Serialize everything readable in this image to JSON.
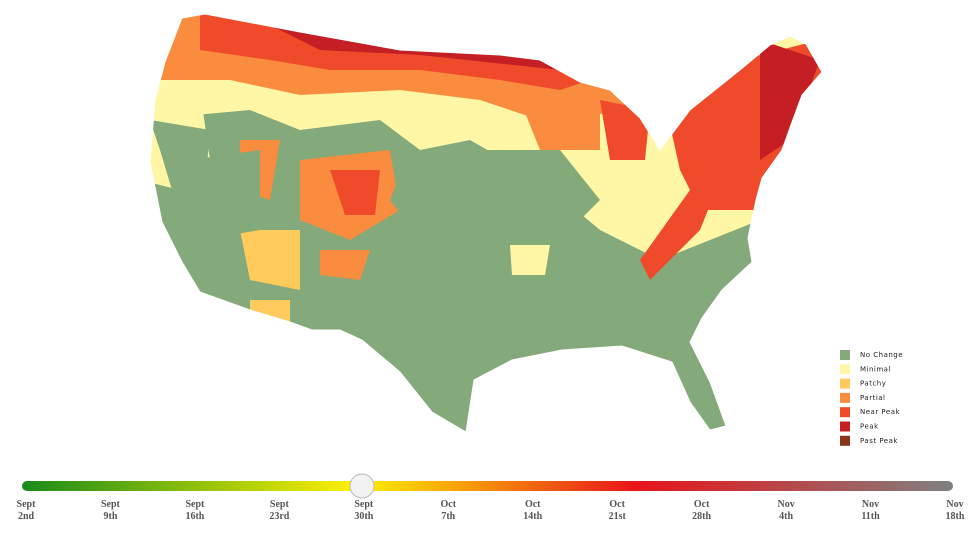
{
  "legend": [
    {
      "label": "No Change",
      "color": "#84a97b"
    },
    {
      "label": "Minimal",
      "color": "#fff6a6"
    },
    {
      "label": "Patchy",
      "color": "#fecb5c"
    },
    {
      "label": "Partial",
      "color": "#f98c3e"
    },
    {
      "label": "Near Peak",
      "color": "#ef4a2a"
    },
    {
      "label": "Peak",
      "color": "#c41f24"
    },
    {
      "label": "Past Peak",
      "color": "#8a3518"
    }
  ],
  "timeline": [
    {
      "month": "Sept",
      "day": "2nd"
    },
    {
      "month": "Sept",
      "day": "9th"
    },
    {
      "month": "Sept",
      "day": "16th"
    },
    {
      "month": "Sept",
      "day": "23rd"
    },
    {
      "month": "Sept",
      "day": "30th"
    },
    {
      "month": "Oct",
      "day": "7th"
    },
    {
      "month": "Oct",
      "day": "14th"
    },
    {
      "month": "Oct",
      "day": "21st"
    },
    {
      "month": "Oct",
      "day": "28th"
    },
    {
      "month": "Nov",
      "day": "4th"
    },
    {
      "month": "Nov",
      "day": "11th"
    },
    {
      "month": "Nov",
      "day": "18th"
    }
  ]
}
